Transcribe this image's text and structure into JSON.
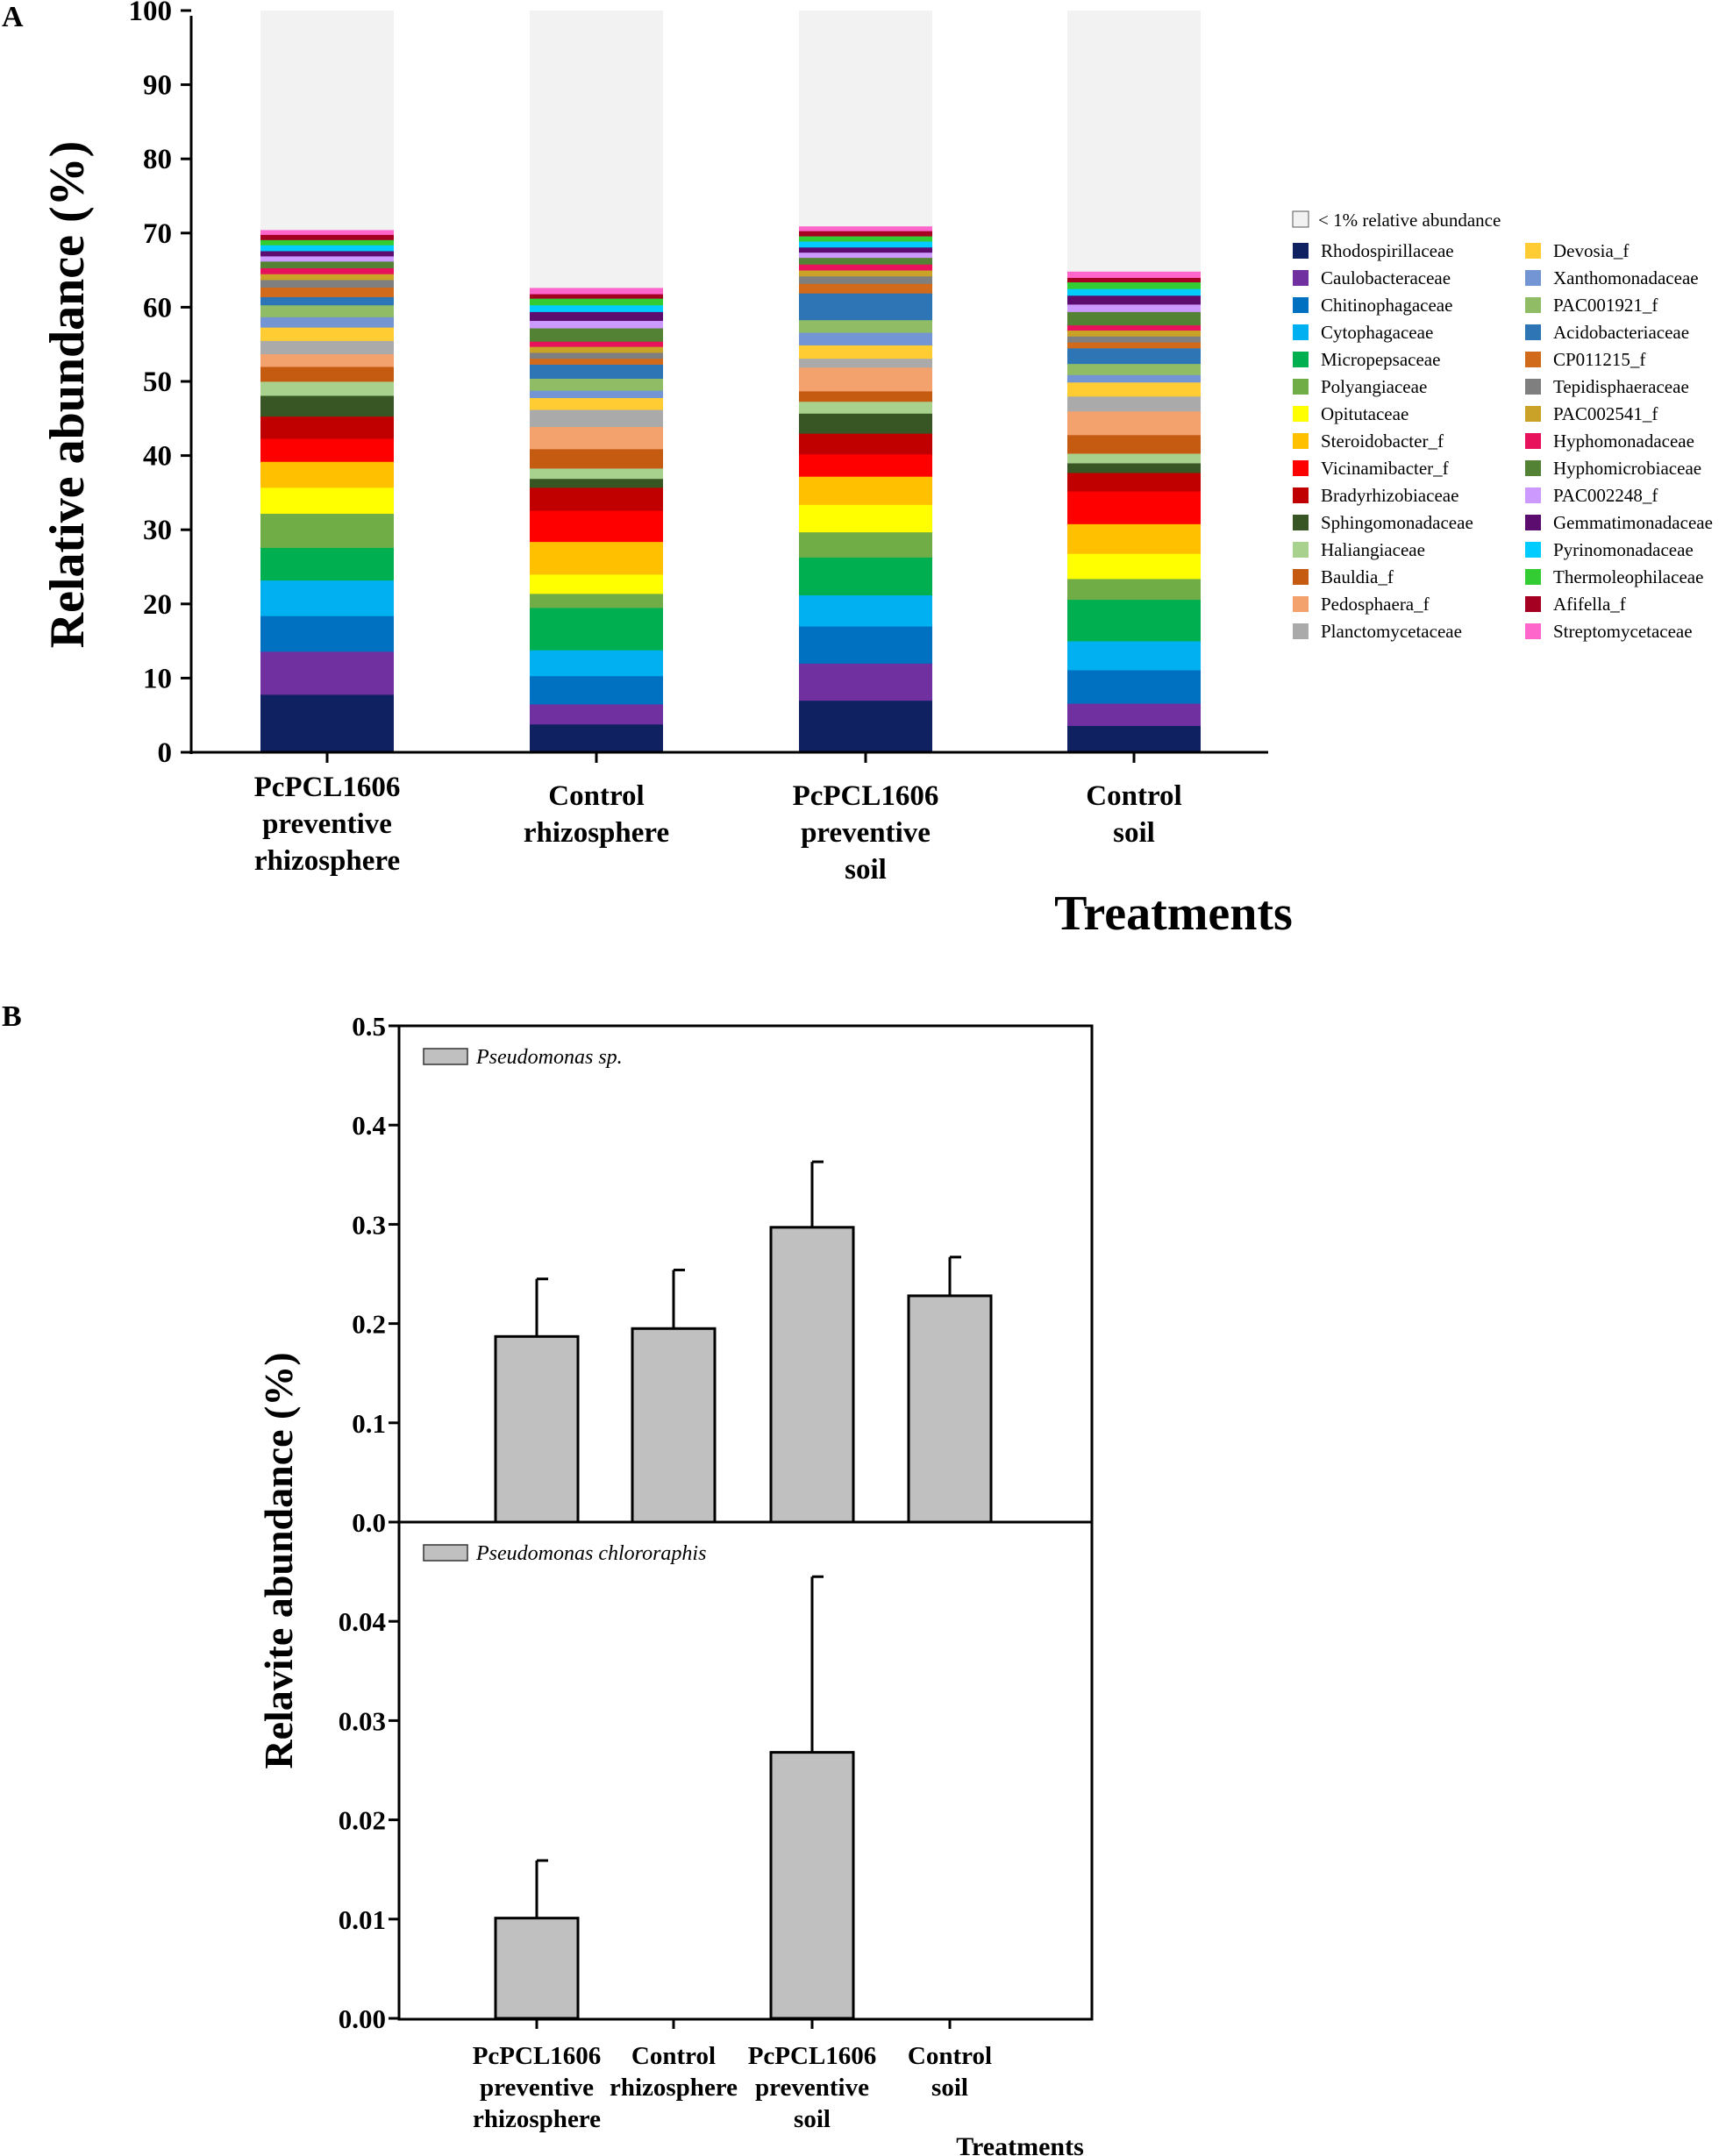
{
  "chart_data": [
    {
      "panel": "A",
      "type": "bar",
      "stacked": true,
      "panel_label": "A",
      "title": "",
      "xlabel": "Treatments",
      "ylabel": "Relative abundance (%)",
      "ylim": [
        0,
        100
      ],
      "yticks": [
        0,
        10,
        20,
        30,
        40,
        50,
        60,
        70,
        80,
        90,
        100
      ],
      "categories": [
        [
          "PcPCL1606",
          "preventive",
          "rhizosphere"
        ],
        [
          "Control",
          "rhizosphere"
        ],
        [
          "PcPCL1606",
          "preventive",
          "soil"
        ],
        [
          "Control",
          "soil"
        ]
      ],
      "remainder": {
        "name": "< 1% relative abundance",
        "color": "#f2f2f2"
      },
      "series": [
        {
          "name": "Rhodospirillaceae",
          "color": "#0f2161",
          "values": [
            7.8,
            3.8,
            7.0,
            3.6
          ]
        },
        {
          "name": "Caulobacteraceae",
          "color": "#7030a0",
          "values": [
            5.8,
            2.7,
            5.0,
            3.0
          ]
        },
        {
          "name": "Chitinophagaceae",
          "color": "#0070c0",
          "values": [
            4.8,
            3.8,
            5.0,
            4.5
          ]
        },
        {
          "name": "Cytophagaceae",
          "color": "#00b0f0",
          "values": [
            4.8,
            3.5,
            4.2,
            3.9
          ]
        },
        {
          "name": "Micropepsaceae",
          "color": "#00b050",
          "values": [
            4.4,
            5.7,
            5.1,
            5.6
          ]
        },
        {
          "name": "Polyangiaceae",
          "color": "#70ad47",
          "values": [
            4.6,
            1.9,
            3.4,
            2.8
          ]
        },
        {
          "name": "Opitutaceae",
          "color": "#ffff00",
          "values": [
            3.5,
            2.6,
            3.7,
            3.4
          ]
        },
        {
          "name": "Steroidobacter_f",
          "color": "#ffc000",
          "values": [
            3.5,
            4.4,
            3.8,
            4.0
          ]
        },
        {
          "name": "Vicinamibacter_f",
          "color": "#ff0000",
          "values": [
            3.1,
            4.2,
            3.0,
            4.4
          ]
        },
        {
          "name": "Bradyrhizobiaceae",
          "color": "#c00000",
          "values": [
            3.0,
            3.1,
            2.8,
            2.5
          ]
        },
        {
          "name": "Sphingomonadaceae",
          "color": "#375623",
          "values": [
            2.8,
            1.2,
            2.7,
            1.3
          ]
        },
        {
          "name": "Haliangiaceae",
          "color": "#a9d18e",
          "values": [
            1.9,
            1.4,
            1.6,
            1.3
          ]
        },
        {
          "name": "Bauldia_f",
          "color": "#c55a11",
          "values": [
            2.0,
            2.6,
            1.4,
            2.5
          ]
        },
        {
          "name": "Pedosphaera_f",
          "color": "#f4a26d",
          "values": [
            1.7,
            3.0,
            3.2,
            3.2
          ]
        },
        {
          "name": "Planctomycetaceae",
          "color": "#aaaaaa",
          "values": [
            1.8,
            2.3,
            1.2,
            2.0
          ]
        },
        {
          "name": "Devosia_f",
          "color": "#ffcc33",
          "values": [
            1.8,
            1.6,
            1.8,
            1.9
          ]
        },
        {
          "name": "Xanthomonadaceae",
          "color": "#7395d3",
          "values": [
            1.4,
            1.0,
            1.7,
            1.0
          ]
        },
        {
          "name": "PAC001921_f",
          "color": "#8fbc65",
          "values": [
            1.6,
            1.6,
            1.7,
            1.5
          ]
        },
        {
          "name": "Acidobacteriaceae",
          "color": "#2e75b6",
          "values": [
            1.1,
            1.9,
            3.6,
            2.1
          ]
        },
        {
          "name": "CP011215_f",
          "color": "#d26a1b",
          "values": [
            1.3,
            0.8,
            1.3,
            0.8
          ]
        },
        {
          "name": "Tepidisphaeraceae",
          "color": "#7f7f7f",
          "values": [
            1.0,
            0.8,
            1.0,
            0.8
          ]
        },
        {
          "name": "PAC002541_f",
          "color": "#c9a227",
          "values": [
            0.8,
            0.8,
            0.8,
            0.8
          ]
        },
        {
          "name": "Hyphomonadaceae",
          "color": "#e8115c",
          "values": [
            0.8,
            0.7,
            0.8,
            0.7
          ]
        },
        {
          "name": "Hyphomicrobiaceae",
          "color": "#548235",
          "values": [
            0.9,
            1.8,
            0.9,
            1.8
          ]
        },
        {
          "name": "PAC002248_f",
          "color": "#cc99ff",
          "values": [
            0.7,
            1.0,
            0.7,
            1.0
          ]
        },
        {
          "name": "Gemmatimonadaceae",
          "color": "#5b0c6e",
          "values": [
            0.7,
            1.2,
            0.7,
            1.2
          ]
        },
        {
          "name": "Pyrinomonadaceae",
          "color": "#00ccff",
          "values": [
            0.8,
            0.9,
            0.8,
            0.9
          ]
        },
        {
          "name": "Thermoleophilaceae",
          "color": "#33cc33",
          "values": [
            0.7,
            0.9,
            0.7,
            0.9
          ]
        },
        {
          "name": "Afifella_f",
          "color": "#a50021",
          "values": [
            0.7,
            0.6,
            0.7,
            0.6
          ]
        },
        {
          "name": "Streptomycetaceae",
          "color": "#ff66cc",
          "values": [
            0.6,
            0.8,
            0.6,
            0.8
          ]
        }
      ]
    },
    {
      "panel": "B",
      "type": "bar",
      "panel_label": "B",
      "ylabel": "Relavite abundance (%)",
      "xlabel": "Treatments",
      "categories": [
        [
          "PcPCL1606",
          "preventive",
          "rhizosphere"
        ],
        [
          "Control",
          "rhizosphere"
        ],
        [
          "PcPCL1606",
          "preventive",
          "soil"
        ],
        [
          "Control",
          "soil"
        ]
      ],
      "bar_color": "#c0c0c0",
      "subplots": [
        {
          "legend": "Pseudomonas sp.",
          "ylim": [
            0,
            0.5
          ],
          "yticks": [
            "0.0",
            "0.1",
            "0.2",
            "0.3",
            "0.4",
            "0.5"
          ],
          "values": [
            0.187,
            0.195,
            0.297,
            0.228
          ],
          "errors": [
            0.058,
            0.059,
            0.066,
            0.039
          ]
        },
        {
          "legend": "Pseudomonas chlororaphis",
          "ylim": [
            0,
            0.05
          ],
          "yticks": [
            "0.00",
            "0.01",
            "0.02",
            "0.03",
            "0.04"
          ],
          "values": [
            0.0101,
            0,
            0.0268,
            0
          ],
          "errors": [
            0.0058,
            0,
            0.0177,
            0
          ]
        }
      ]
    }
  ]
}
